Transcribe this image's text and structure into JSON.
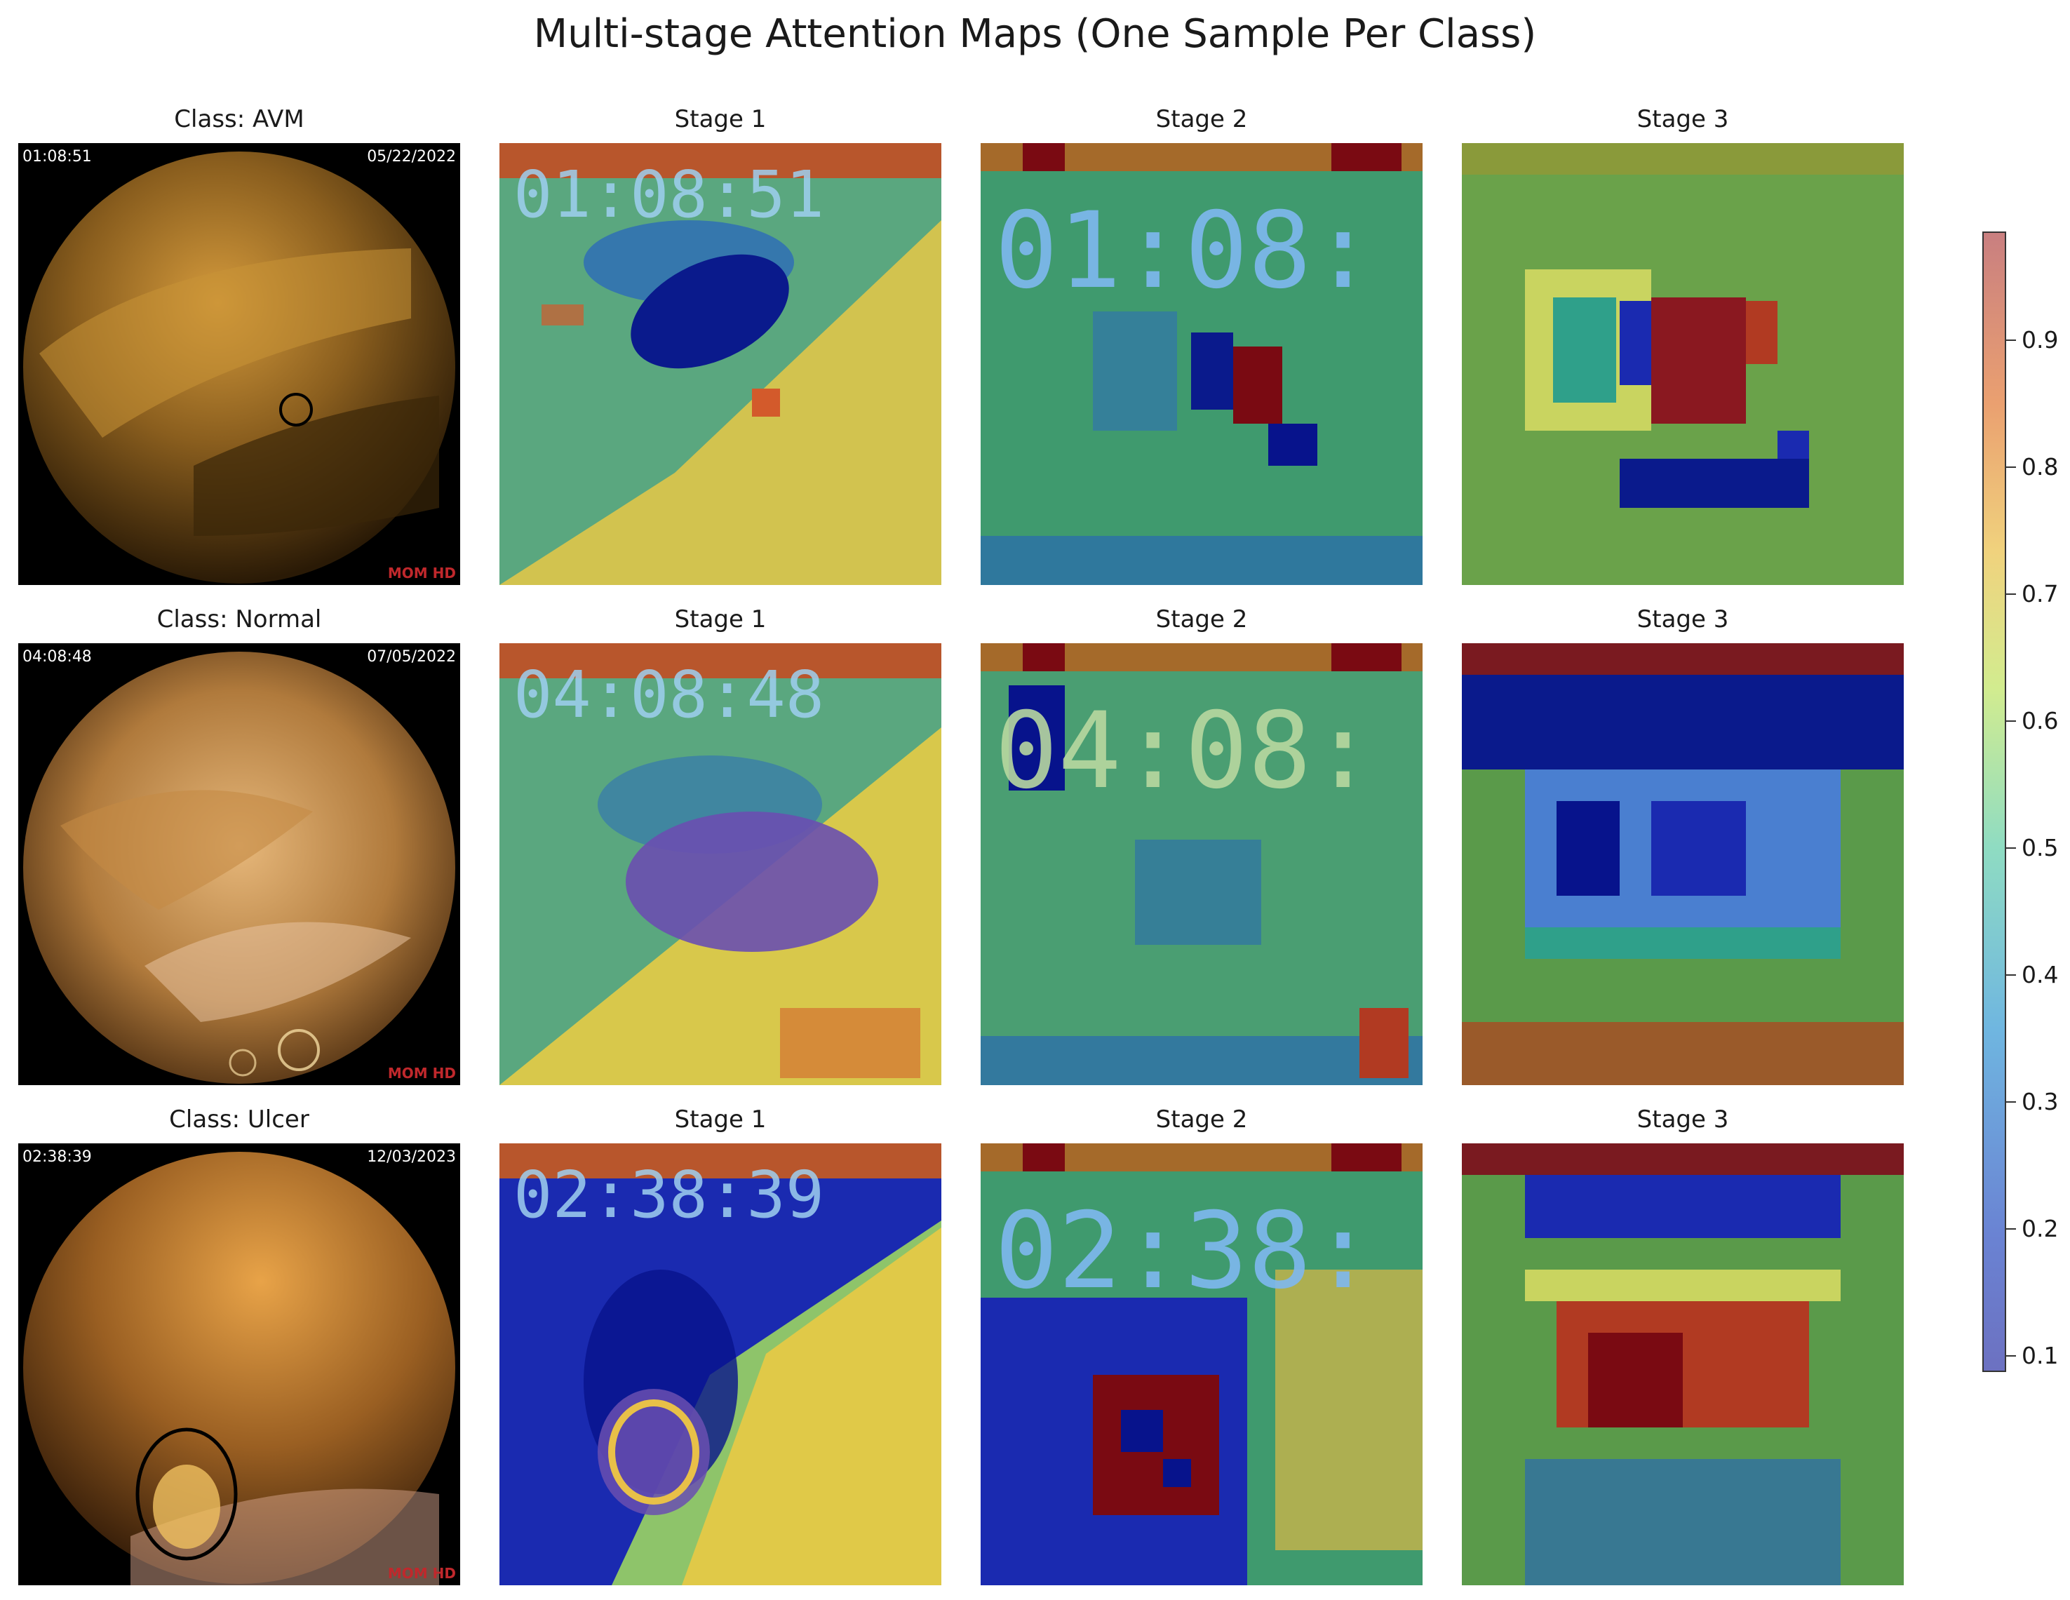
{
  "figure": {
    "title": "Multi-stage Attention Maps (One Sample Per Class)"
  },
  "rows": [
    {
      "class_title": "Class: AVM",
      "frame_time": "01:08:51",
      "frame_date": "05/22/2022",
      "watermark": "MOM HD",
      "overlay_time": "01:08:51",
      "overlay_time_stage2": "01:08:",
      "stage_titles": [
        "Stage 1",
        "Stage 2",
        "Stage 3"
      ]
    },
    {
      "class_title": "Class: Normal",
      "frame_time": "04:08:48",
      "frame_date": "07/05/2022",
      "watermark": "MOM HD",
      "overlay_time": "04:08:48",
      "overlay_time_stage2": "04:08:",
      "stage_titles": [
        "Stage 1",
        "Stage 2",
        "Stage 3"
      ]
    },
    {
      "class_title": "Class: Ulcer",
      "frame_time": "02:38:39",
      "frame_date": "12/03/2023",
      "watermark": "MOM HD",
      "overlay_time": "02:38:39",
      "overlay_time_stage2": "02:38:",
      "stage_titles": [
        "Stage 1",
        "Stage 2",
        "Stage 3"
      ]
    }
  ],
  "colorbar": {
    "ticks": [
      "0.9",
      "0.8",
      "0.7",
      "0.6",
      "0.5",
      "0.4",
      "0.3",
      "0.2",
      "0.1"
    ]
  },
  "colors": {
    "jet_dark_blue": "#07138c",
    "jet_green": "#2f9a72",
    "jet_yellow": "#e8d64a",
    "jet_dark_red": "#7a0a12",
    "annotation_circle": "#000000"
  }
}
